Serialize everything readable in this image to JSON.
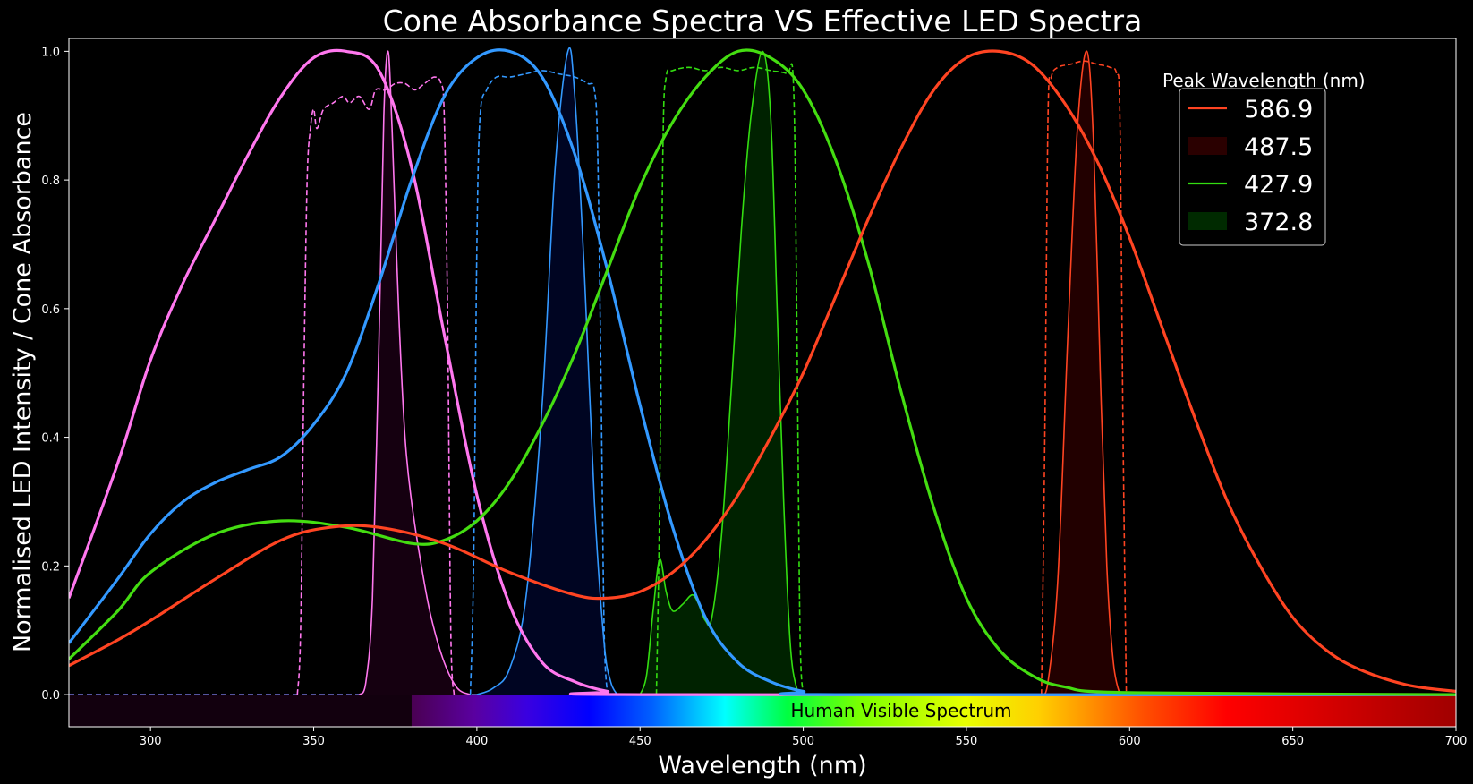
{
  "chart_data": {
    "type": "line",
    "title": "Cone Absorbance Spectra VS Effective LED Spectra",
    "xlabel": "Wavelength (nm)",
    "ylabel": "Normalised LED Intensity / Cone Absorbance",
    "xlim": [
      275,
      700
    ],
    "ylim": [
      -0.05,
      1.02
    ],
    "x_ticks": [
      "300",
      "350",
      "400",
      "450",
      "500",
      "550",
      "600",
      "650",
      "700"
    ],
    "y_ticks": [
      "0.0",
      "0.2",
      "0.4",
      "0.6",
      "0.8",
      "1.0"
    ],
    "grid": false,
    "background": "#000000",
    "spectrum_band": {
      "label": "Human Visible Spectrum",
      "visible_start_nm": 380,
      "visible_end_nm": 700
    },
    "legend": {
      "title": "Peak Wavelength (nm)",
      "placement": "top-right",
      "entries": [
        {
          "label": "586.9",
          "marker": "line",
          "color": "#ff4422"
        },
        {
          "label": "487.5",
          "marker": "patch",
          "color": "#2a0000"
        },
        {
          "label": "427.9",
          "marker": "line",
          "color": "#33dd11"
        },
        {
          "label": "372.8",
          "marker": "patch",
          "color": "#002a00"
        }
      ]
    },
    "cone_curves": [
      {
        "name": "UV cone",
        "color": "#ff77ee",
        "points": [
          [
            275,
            0.15
          ],
          [
            290,
            0.36
          ],
          [
            300,
            0.52
          ],
          [
            310,
            0.64
          ],
          [
            320,
            0.74
          ],
          [
            330,
            0.84
          ],
          [
            340,
            0.93
          ],
          [
            350,
            0.99
          ],
          [
            360,
            1.0
          ],
          [
            370,
            0.97
          ],
          [
            380,
            0.82
          ],
          [
            390,
            0.56
          ],
          [
            400,
            0.31
          ],
          [
            410,
            0.14
          ],
          [
            420,
            0.05
          ],
          [
            430,
            0.02
          ],
          [
            440,
            0.005
          ],
          [
            450,
            0.0
          ],
          [
            700,
            0.0
          ]
        ]
      },
      {
        "name": "S cone",
        "color": "#3399ff",
        "points": [
          [
            275,
            0.08
          ],
          [
            290,
            0.18
          ],
          [
            300,
            0.25
          ],
          [
            310,
            0.3
          ],
          [
            320,
            0.33
          ],
          [
            330,
            0.35
          ],
          [
            340,
            0.37
          ],
          [
            350,
            0.42
          ],
          [
            360,
            0.5
          ],
          [
            370,
            0.64
          ],
          [
            380,
            0.8
          ],
          [
            390,
            0.93
          ],
          [
            400,
            0.99
          ],
          [
            410,
            1.0
          ],
          [
            420,
            0.96
          ],
          [
            430,
            0.84
          ],
          [
            440,
            0.66
          ],
          [
            450,
            0.45
          ],
          [
            460,
            0.26
          ],
          [
            470,
            0.12
          ],
          [
            480,
            0.05
          ],
          [
            490,
            0.02
          ],
          [
            500,
            0.005
          ],
          [
            510,
            0.0
          ],
          [
            700,
            0.0
          ]
        ]
      },
      {
        "name": "M cone",
        "color": "#44dd11",
        "points": [
          [
            275,
            0.055
          ],
          [
            290,
            0.13
          ],
          [
            300,
            0.19
          ],
          [
            320,
            0.25
          ],
          [
            340,
            0.27
          ],
          [
            360,
            0.26
          ],
          [
            380,
            0.235
          ],
          [
            390,
            0.24
          ],
          [
            400,
            0.27
          ],
          [
            410,
            0.33
          ],
          [
            420,
            0.42
          ],
          [
            430,
            0.53
          ],
          [
            440,
            0.66
          ],
          [
            450,
            0.79
          ],
          [
            460,
            0.89
          ],
          [
            470,
            0.96
          ],
          [
            480,
            1.0
          ],
          [
            490,
            0.99
          ],
          [
            500,
            0.94
          ],
          [
            510,
            0.83
          ],
          [
            520,
            0.67
          ],
          [
            530,
            0.47
          ],
          [
            540,
            0.29
          ],
          [
            550,
            0.15
          ],
          [
            560,
            0.07
          ],
          [
            570,
            0.03
          ],
          [
            580,
            0.012
          ],
          [
            600,
            0.003
          ],
          [
            700,
            0.0
          ]
        ]
      },
      {
        "name": "L cone",
        "color": "#ff4422",
        "points": [
          [
            275,
            0.045
          ],
          [
            290,
            0.085
          ],
          [
            300,
            0.115
          ],
          [
            320,
            0.18
          ],
          [
            340,
            0.24
          ],
          [
            355,
            0.26
          ],
          [
            370,
            0.26
          ],
          [
            390,
            0.235
          ],
          [
            410,
            0.19
          ],
          [
            430,
            0.155
          ],
          [
            440,
            0.15
          ],
          [
            450,
            0.16
          ],
          [
            460,
            0.19
          ],
          [
            470,
            0.24
          ],
          [
            480,
            0.31
          ],
          [
            490,
            0.4
          ],
          [
            500,
            0.5
          ],
          [
            510,
            0.62
          ],
          [
            520,
            0.74
          ],
          [
            530,
            0.85
          ],
          [
            540,
            0.94
          ],
          [
            550,
            0.99
          ],
          [
            560,
            1.0
          ],
          [
            570,
            0.98
          ],
          [
            580,
            0.92
          ],
          [
            590,
            0.83
          ],
          [
            600,
            0.71
          ],
          [
            610,
            0.57
          ],
          [
            620,
            0.43
          ],
          [
            630,
            0.3
          ],
          [
            640,
            0.2
          ],
          [
            650,
            0.12
          ],
          [
            660,
            0.07
          ],
          [
            670,
            0.04
          ],
          [
            685,
            0.015
          ],
          [
            700,
            0.005
          ]
        ]
      }
    ],
    "led_spectra": [
      {
        "peak": 372.8,
        "color": "#ff77ee",
        "fill": "#150010",
        "points": [
          [
            364,
            0.0
          ],
          [
            366,
            0.02
          ],
          [
            368,
            0.15
          ],
          [
            370,
            0.55
          ],
          [
            371.5,
            0.9
          ],
          [
            372.8,
            1.0
          ],
          [
            374,
            0.88
          ],
          [
            376,
            0.6
          ],
          [
            378,
            0.4
          ],
          [
            380,
            0.3
          ],
          [
            383,
            0.2
          ],
          [
            386,
            0.12
          ],
          [
            390,
            0.05
          ],
          [
            394,
            0.01
          ],
          [
            398,
            0.0
          ]
        ]
      },
      {
        "peak": 427.9,
        "color": "#3399ff",
        "fill": "#000522",
        "points": [
          [
            400,
            0.0
          ],
          [
            405,
            0.01
          ],
          [
            410,
            0.04
          ],
          [
            415,
            0.15
          ],
          [
            420,
            0.45
          ],
          [
            424,
            0.82
          ],
          [
            427.9,
            1.0
          ],
          [
            430,
            0.93
          ],
          [
            433,
            0.65
          ],
          [
            436,
            0.3
          ],
          [
            439,
            0.08
          ],
          [
            441,
            0.02
          ],
          [
            443,
            0.0
          ]
        ]
      },
      {
        "peak": 487.5,
        "color": "#33dd11",
        "fill": "#002200",
        "points": [
          [
            450,
            0.0
          ],
          [
            452,
            0.03
          ],
          [
            454,
            0.13
          ],
          [
            456,
            0.21
          ],
          [
            458,
            0.16
          ],
          [
            460,
            0.13
          ],
          [
            463,
            0.14
          ],
          [
            466,
            0.155
          ],
          [
            468,
            0.14
          ],
          [
            470,
            0.115
          ],
          [
            472,
            0.12
          ],
          [
            475,
            0.25
          ],
          [
            478,
            0.48
          ],
          [
            481,
            0.72
          ],
          [
            484,
            0.9
          ],
          [
            487.5,
            1.0
          ],
          [
            490,
            0.9
          ],
          [
            492,
            0.6
          ],
          [
            494,
            0.3
          ],
          [
            496,
            0.08
          ],
          [
            498,
            0.01
          ],
          [
            500,
            0.0
          ]
        ]
      },
      {
        "peak": 586.9,
        "color": "#ff4422",
        "fill": "#220000",
        "points": [
          [
            573,
            0.0
          ],
          [
            575,
            0.02
          ],
          [
            578,
            0.18
          ],
          [
            581,
            0.55
          ],
          [
            584,
            0.88
          ],
          [
            586.9,
            1.0
          ],
          [
            589,
            0.85
          ],
          [
            591,
            0.5
          ],
          [
            593,
            0.2
          ],
          [
            595,
            0.05
          ],
          [
            597,
            0.0
          ]
        ]
      }
    ],
    "filter_curves": [
      {
        "color": "#ff77ee",
        "points": [
          [
            345,
            0.0
          ],
          [
            346,
            0.1
          ],
          [
            347,
            0.5
          ],
          [
            348,
            0.8
          ],
          [
            349,
            0.88
          ],
          [
            350,
            0.91
          ],
          [
            351,
            0.88
          ],
          [
            353,
            0.91
          ],
          [
            356,
            0.92
          ],
          [
            359,
            0.93
          ],
          [
            361,
            0.92
          ],
          [
            364,
            0.93
          ],
          [
            367,
            0.91
          ],
          [
            369,
            0.94
          ],
          [
            372,
            0.94
          ],
          [
            375,
            0.95
          ],
          [
            378,
            0.95
          ],
          [
            381,
            0.94
          ],
          [
            384,
            0.95
          ],
          [
            387,
            0.96
          ],
          [
            389,
            0.95
          ],
          [
            390,
            0.9
          ],
          [
            391,
            0.6
          ],
          [
            392,
            0.1
          ],
          [
            393,
            0.0
          ]
        ]
      },
      {
        "color": "#3399ff",
        "points": [
          [
            398,
            0.0
          ],
          [
            399,
            0.2
          ],
          [
            400,
            0.7
          ],
          [
            401,
            0.9
          ],
          [
            403,
            0.94
          ],
          [
            406,
            0.96
          ],
          [
            410,
            0.96
          ],
          [
            415,
            0.965
          ],
          [
            420,
            0.97
          ],
          [
            425,
            0.965
          ],
          [
            430,
            0.96
          ],
          [
            434,
            0.95
          ],
          [
            436,
            0.94
          ],
          [
            437,
            0.85
          ],
          [
            438,
            0.5
          ],
          [
            439,
            0.1
          ],
          [
            440,
            0.0
          ]
        ]
      },
      {
        "color": "#33dd11",
        "points": [
          [
            455,
            0.0
          ],
          [
            456,
            0.3
          ],
          [
            457,
            0.85
          ],
          [
            458,
            0.96
          ],
          [
            460,
            0.97
          ],
          [
            465,
            0.975
          ],
          [
            470,
            0.97
          ],
          [
            475,
            0.975
          ],
          [
            480,
            0.97
          ],
          [
            485,
            0.975
          ],
          [
            490,
            0.97
          ],
          [
            495,
            0.965
          ],
          [
            497,
            0.95
          ],
          [
            498,
            0.6
          ],
          [
            499,
            0.1
          ],
          [
            500,
            0.0
          ]
        ]
      },
      {
        "color": "#ff4422",
        "points": [
          [
            573,
            0.0
          ],
          [
            574,
            0.4
          ],
          [
            575,
            0.9
          ],
          [
            576,
            0.96
          ],
          [
            578,
            0.975
          ],
          [
            582,
            0.98
          ],
          [
            586,
            0.985
          ],
          [
            590,
            0.98
          ],
          [
            594,
            0.975
          ],
          [
            596,
            0.965
          ],
          [
            597,
            0.9
          ],
          [
            598,
            0.4
          ],
          [
            599,
            0.0
          ]
        ]
      }
    ]
  }
}
